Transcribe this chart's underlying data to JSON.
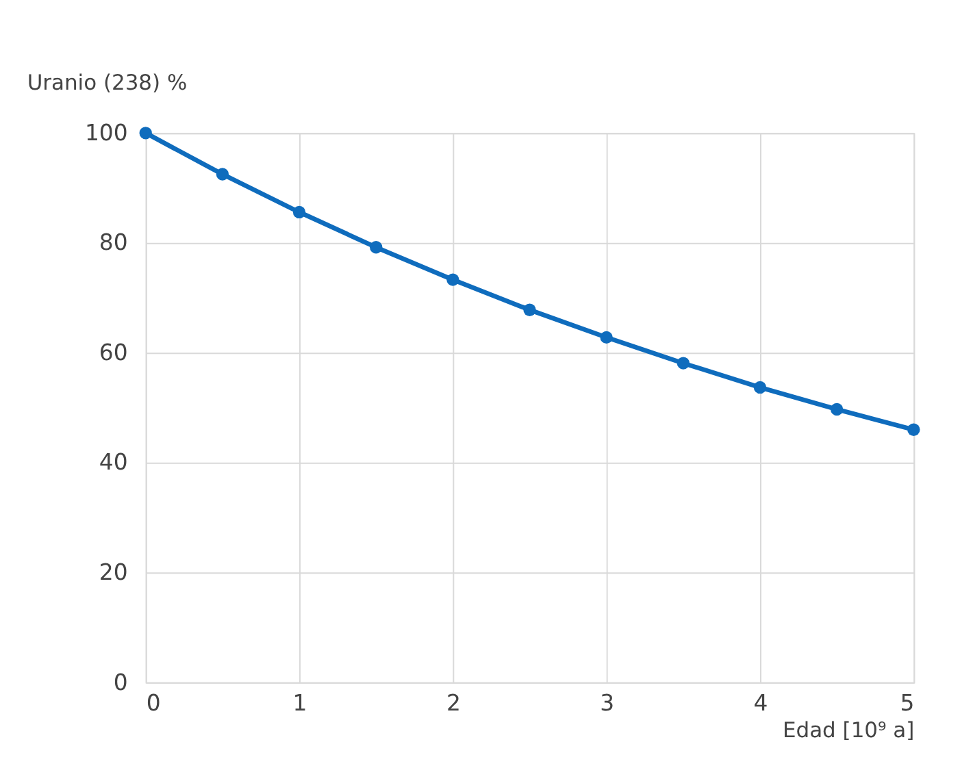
{
  "chart_data": {
    "type": "line",
    "xlabel": "Edad [10⁹ a]",
    "ylabel": "Uranio (238) %",
    "x": [
      0,
      0.5,
      1,
      1.5,
      2,
      2.5,
      3,
      3.5,
      4,
      4.5,
      5
    ],
    "series": [
      {
        "color": "#0f6cbd",
        "values": [
          100,
          92.5,
          85.6,
          79.2,
          73.3,
          67.8,
          62.8,
          58.1,
          53.7,
          49.7,
          46.0
        ]
      }
    ],
    "xlim": [
      0,
      5
    ],
    "xticks": [
      0,
      1,
      2,
      3,
      4,
      5
    ],
    "ylim": [
      0,
      100
    ],
    "yticks": [
      0,
      20,
      40,
      60,
      80,
      100
    ],
    "grid": true,
    "marker": "circle",
    "line_style": "solid"
  }
}
